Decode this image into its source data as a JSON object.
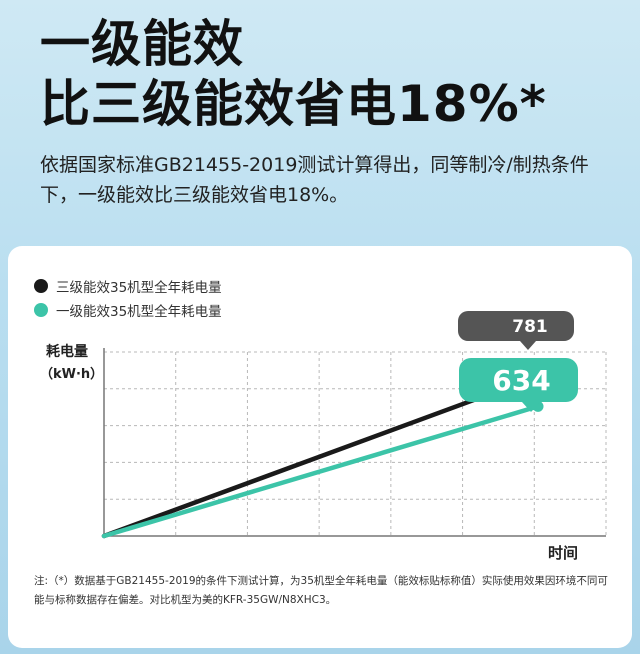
{
  "headline": {
    "line1": "一级能效",
    "line2": "比三级能效省电18%*"
  },
  "subtext": "依据国家标准GB21455-2019测试计算得出，同等制冷/制热条件下，一级能效比三级能效省电18%。",
  "chart_data": {
    "type": "line",
    "ylabel": "耗电量",
    "yunit": "（kW·h）",
    "xlabel": "时间",
    "ylim": [
      0,
      900
    ],
    "grid": true,
    "legend_position": "top-left",
    "series": [
      {
        "name": "三级能效35机型全年耗电量",
        "color": "#1a1a1a",
        "x": [
          0,
          1
        ],
        "y": [
          0,
          781
        ],
        "end_label": "781"
      },
      {
        "name": "一级能效35机型全年耗电量",
        "color": "#3cc4a8",
        "x": [
          0,
          1
        ],
        "y": [
          0,
          634
        ],
        "end_label": "634"
      }
    ]
  },
  "note": "注:（*）数据基于GB21455-2019的条件下测试计算，为35机型全年耗电量（能效标贴标称值）实际使用效果因环境不同可能与标称数据存在偏差。对比机型为美的KFR-35GW/N8XHC3。"
}
